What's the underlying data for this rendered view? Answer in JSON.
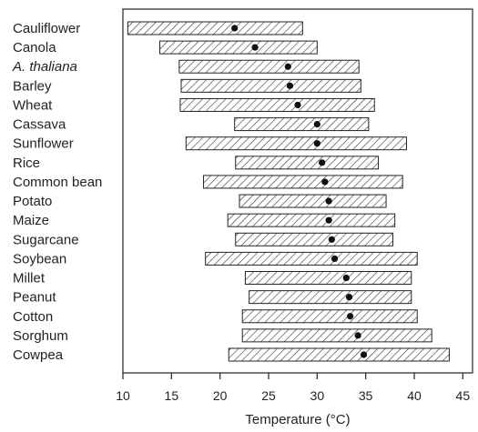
{
  "chart_data": {
    "type": "range-bar",
    "xlabel": "Temperature (°C)",
    "ylabel": "",
    "title": "",
    "xlim": [
      10,
      46
    ],
    "xticks": [
      10,
      15,
      20,
      25,
      30,
      35,
      40,
      45
    ],
    "grid": false,
    "legend": "none",
    "bar_fill": "diagonal-hatch",
    "bar_stroke_color": "#222222",
    "marker_color": "#111111",
    "rows": [
      {
        "label": "Cauliflower",
        "italic": false,
        "min": 10.5,
        "max": 28.5,
        "optimum": 21.5
      },
      {
        "label": "Canola",
        "italic": false,
        "min": 13.8,
        "max": 30.0,
        "optimum": 23.6
      },
      {
        "label": "A. thaliana",
        "italic": true,
        "min": 15.8,
        "max": 34.3,
        "optimum": 27.0
      },
      {
        "label": "Barley",
        "italic": false,
        "min": 16.0,
        "max": 34.5,
        "optimum": 27.2
      },
      {
        "label": "Wheat",
        "italic": false,
        "min": 15.9,
        "max": 35.9,
        "optimum": 28.0
      },
      {
        "label": "Cassava",
        "italic": false,
        "min": 21.5,
        "max": 35.3,
        "optimum": 30.0
      },
      {
        "label": "Sunflower",
        "italic": false,
        "min": 16.5,
        "max": 39.2,
        "optimum": 30.0
      },
      {
        "label": "Rice",
        "italic": false,
        "min": 21.6,
        "max": 36.3,
        "optimum": 30.5
      },
      {
        "label": "Common bean",
        "italic": false,
        "min": 18.3,
        "max": 38.8,
        "optimum": 30.8
      },
      {
        "label": "Potato",
        "italic": false,
        "min": 22.0,
        "max": 37.1,
        "optimum": 31.2
      },
      {
        "label": "Maize",
        "italic": false,
        "min": 20.8,
        "max": 38.0,
        "optimum": 31.2
      },
      {
        "label": "Sugarcane",
        "italic": false,
        "min": 21.6,
        "max": 37.8,
        "optimum": 31.5
      },
      {
        "label": "Soybean",
        "italic": false,
        "min": 18.5,
        "max": 40.3,
        "optimum": 31.8
      },
      {
        "label": "Millet",
        "italic": false,
        "min": 22.6,
        "max": 39.7,
        "optimum": 33.0
      },
      {
        "label": "Peanut",
        "italic": false,
        "min": 23.0,
        "max": 39.7,
        "optimum": 33.3
      },
      {
        "label": "Cotton",
        "italic": false,
        "min": 22.3,
        "max": 40.3,
        "optimum": 33.4
      },
      {
        "label": "Sorghum",
        "italic": false,
        "min": 22.3,
        "max": 41.8,
        "optimum": 34.2
      },
      {
        "label": "Cowpea",
        "italic": false,
        "min": 20.9,
        "max": 43.6,
        "optimum": 34.8
      }
    ]
  }
}
